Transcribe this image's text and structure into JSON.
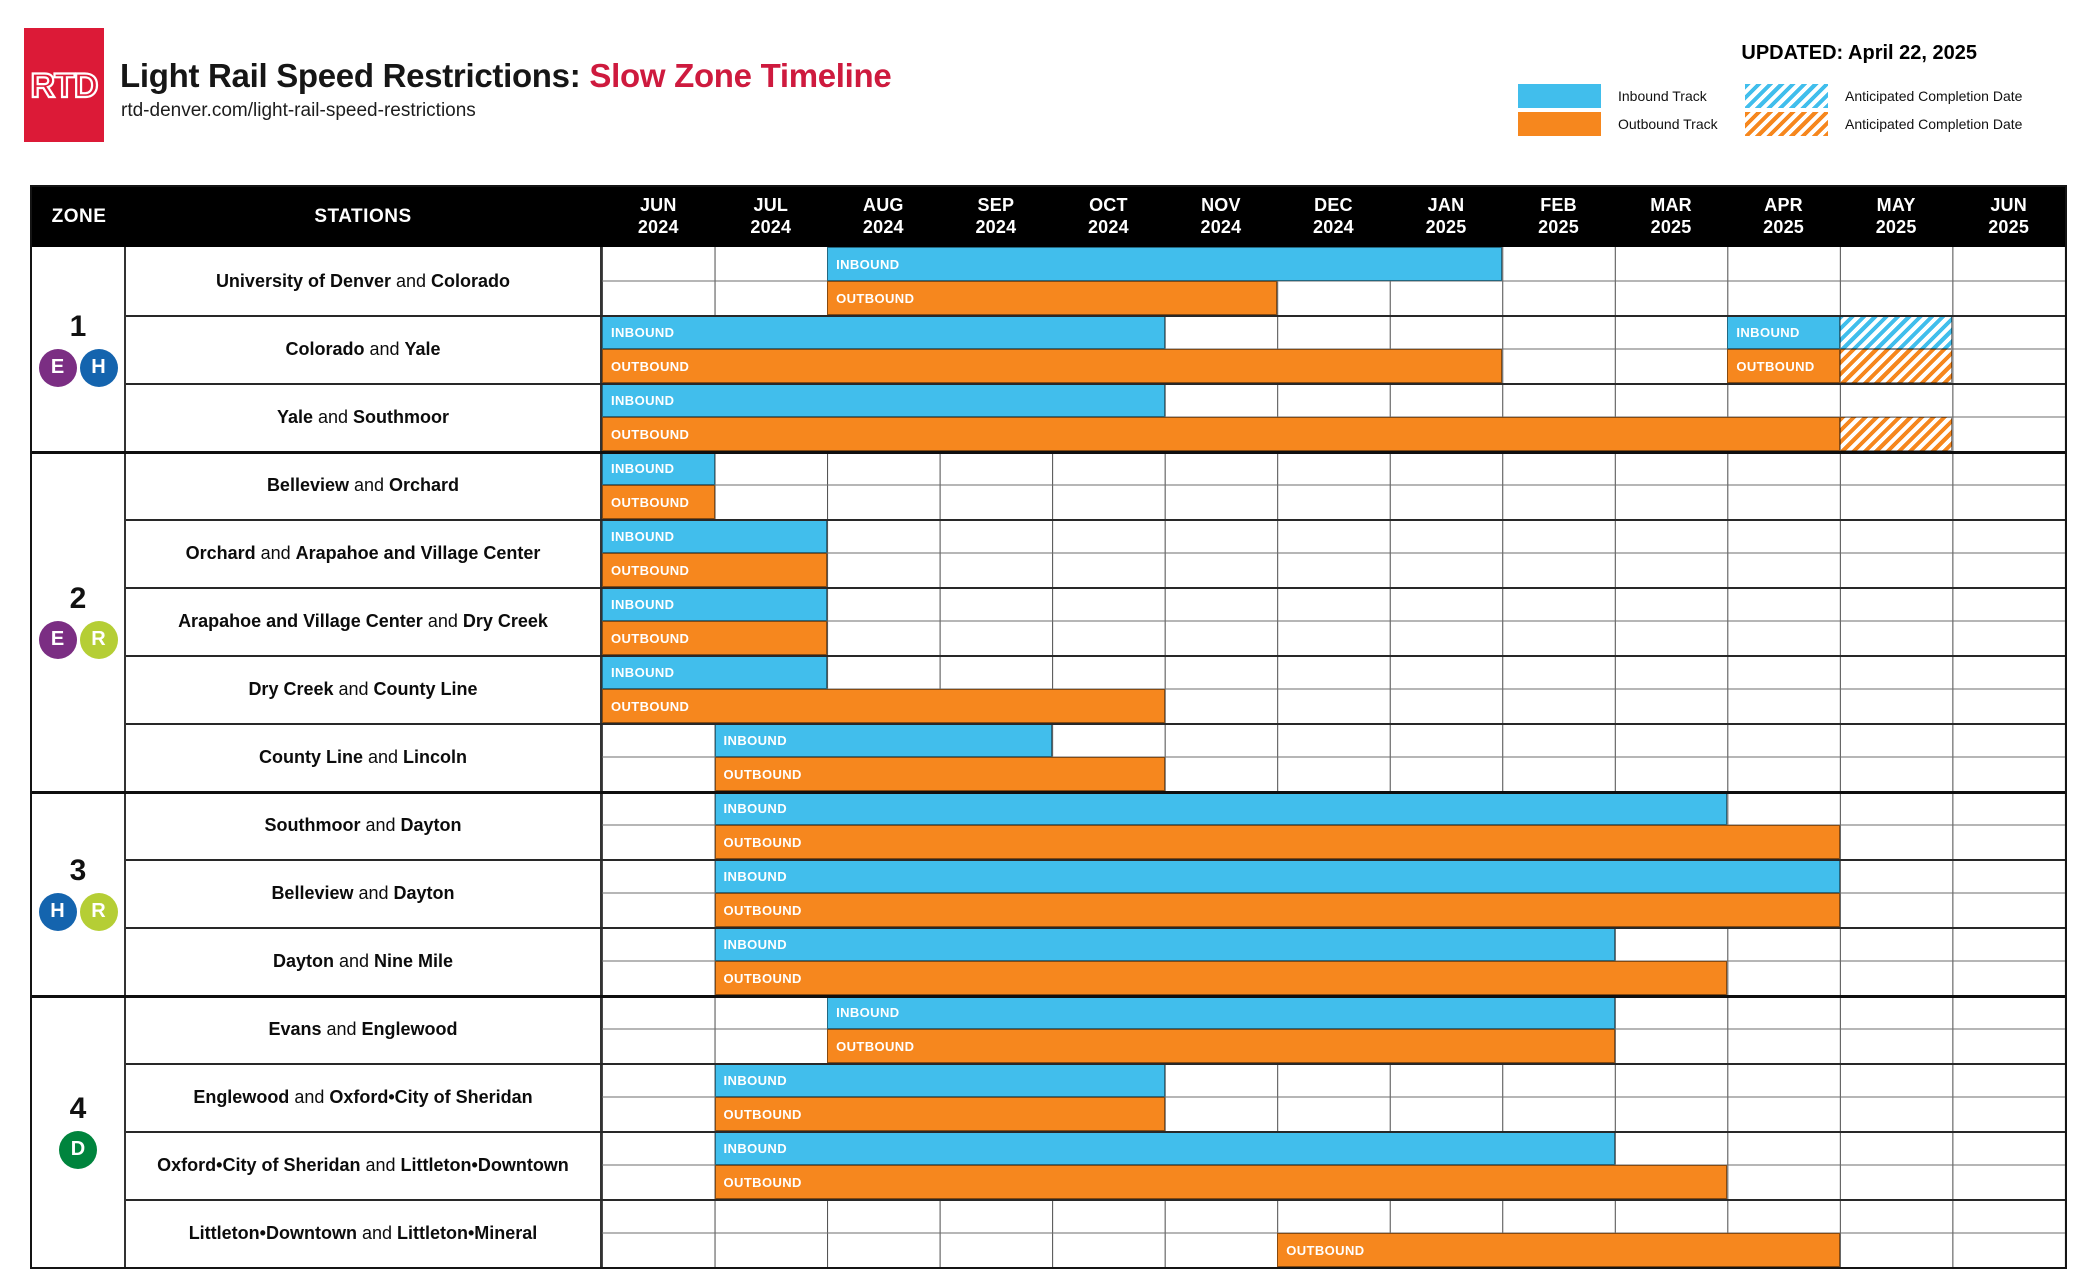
{
  "header": {
    "logo_text": "RTD",
    "title_black": "Light Rail Speed Restrictions:",
    "title_red": "Slow Zone Timeline",
    "subtitle": "rtd-denver.com/light-rail-speed-restrictions",
    "updated": "UPDATED: April 22, 2025"
  },
  "legend": {
    "inbound_label": "Inbound Track",
    "outbound_label": "Outbound Track",
    "anticipated_inbound_label": "Anticipated Completion Date",
    "anticipated_outbound_label": "Anticipated Completion Date"
  },
  "labels": {
    "inbound": "INBOUND",
    "outbound": "OUTBOUND"
  },
  "columns": {
    "zone": "ZONE",
    "stations": "STATIONS"
  },
  "months": [
    {
      "m": "JUN",
      "y": "2024"
    },
    {
      "m": "JUL",
      "y": "2024"
    },
    {
      "m": "AUG",
      "y": "2024"
    },
    {
      "m": "SEP",
      "y": "2024"
    },
    {
      "m": "OCT",
      "y": "2024"
    },
    {
      "m": "NOV",
      "y": "2024"
    },
    {
      "m": "DEC",
      "y": "2024"
    },
    {
      "m": "JAN",
      "y": "2025"
    },
    {
      "m": "FEB",
      "y": "2025"
    },
    {
      "m": "MAR",
      "y": "2025"
    },
    {
      "m": "APR",
      "y": "2025"
    },
    {
      "m": "MAY",
      "y": "2025"
    },
    {
      "m": "JUN",
      "y": "2025"
    }
  ],
  "colors": {
    "inbound": "#41BEEC",
    "outbound": "#F6871E",
    "header_bg": "#000000",
    "logo_red": "#DC1A37",
    "title_red": "#CE1A3E",
    "badge_E": "#7B2E83",
    "badge_H": "#1464AE",
    "badge_R": "#B5CE35",
    "badge_D": "#00843D"
  },
  "zones": [
    {
      "zone": "1",
      "badges": [
        {
          "letter": "E",
          "color_key": "badge_E"
        },
        {
          "letter": "H",
          "color_key": "badge_H"
        }
      ],
      "rows": [
        {
          "name": [
            [
              "University of Denver",
              true
            ],
            [
              " and ",
              false
            ],
            [
              "Colorado",
              true
            ]
          ],
          "in": [
            {
              "s": 2,
              "l": 6
            }
          ],
          "out": [
            {
              "s": 2,
              "l": 4
            }
          ],
          "inh": [],
          "outh": []
        },
        {
          "name": [
            [
              "Colorado",
              true
            ],
            [
              " and ",
              false
            ],
            [
              "Yale",
              true
            ]
          ],
          "in": [
            {
              "s": 0,
              "l": 5
            },
            {
              "s": 10,
              "l": 1
            }
          ],
          "out": [
            {
              "s": 0,
              "l": 8
            },
            {
              "s": 10,
              "l": 1
            }
          ],
          "inh": [
            {
              "s": 11,
              "l": 1
            }
          ],
          "outh": [
            {
              "s": 11,
              "l": 1
            }
          ]
        },
        {
          "name": [
            [
              "Yale",
              true
            ],
            [
              " and ",
              false
            ],
            [
              "Southmoor",
              true
            ]
          ],
          "in": [
            {
              "s": 0,
              "l": 5
            }
          ],
          "out": [
            {
              "s": 0,
              "l": 11
            }
          ],
          "inh": [],
          "outh": [
            {
              "s": 11,
              "l": 1
            }
          ]
        }
      ]
    },
    {
      "zone": "2",
      "badges": [
        {
          "letter": "E",
          "color_key": "badge_E"
        },
        {
          "letter": "R",
          "color_key": "badge_R"
        }
      ],
      "rows": [
        {
          "name": [
            [
              "Belleview",
              true
            ],
            [
              " and ",
              false
            ],
            [
              "Orchard",
              true
            ]
          ],
          "in": [
            {
              "s": 0,
              "l": 1
            }
          ],
          "out": [
            {
              "s": 0,
              "l": 1
            }
          ],
          "inh": [],
          "outh": []
        },
        {
          "name": [
            [
              "Orchard",
              true
            ],
            [
              " and ",
              false
            ],
            [
              "Arapahoe and Village Center",
              true
            ]
          ],
          "in": [
            {
              "s": 0,
              "l": 2
            }
          ],
          "out": [
            {
              "s": 0,
              "l": 2
            }
          ],
          "inh": [],
          "outh": []
        },
        {
          "name": [
            [
              "Arapahoe and Village Center",
              true
            ],
            [
              " and ",
              false
            ],
            [
              "Dry Creek",
              true
            ]
          ],
          "in": [
            {
              "s": 0,
              "l": 2
            }
          ],
          "out": [
            {
              "s": 0,
              "l": 2
            }
          ],
          "inh": [],
          "outh": []
        },
        {
          "name": [
            [
              "Dry Creek",
              true
            ],
            [
              " and ",
              false
            ],
            [
              "County Line",
              true
            ]
          ],
          "in": [
            {
              "s": 0,
              "l": 2
            }
          ],
          "out": [
            {
              "s": 0,
              "l": 5
            }
          ],
          "inh": [],
          "outh": []
        },
        {
          "name": [
            [
              "County Line",
              true
            ],
            [
              " and ",
              false
            ],
            [
              "Lincoln",
              true
            ]
          ],
          "in": [
            {
              "s": 1,
              "l": 3
            }
          ],
          "out": [
            {
              "s": 1,
              "l": 4
            }
          ],
          "inh": [],
          "outh": []
        }
      ]
    },
    {
      "zone": "3",
      "badges": [
        {
          "letter": "H",
          "color_key": "badge_H"
        },
        {
          "letter": "R",
          "color_key": "badge_R"
        }
      ],
      "rows": [
        {
          "name": [
            [
              "Southmoor",
              true
            ],
            [
              " and ",
              false
            ],
            [
              "Dayton",
              true
            ]
          ],
          "in": [
            {
              "s": 1,
              "l": 9
            }
          ],
          "out": [
            {
              "s": 1,
              "l": 10
            }
          ],
          "inh": [],
          "outh": []
        },
        {
          "name": [
            [
              "Belleview",
              true
            ],
            [
              " and ",
              false
            ],
            [
              "Dayton",
              true
            ]
          ],
          "in": [
            {
              "s": 1,
              "l": 10
            }
          ],
          "out": [
            {
              "s": 1,
              "l": 10
            }
          ],
          "inh": [],
          "outh": []
        },
        {
          "name": [
            [
              "Dayton",
              true
            ],
            [
              " and ",
              false
            ],
            [
              "Nine Mile",
              true
            ]
          ],
          "in": [
            {
              "s": 1,
              "l": 8
            }
          ],
          "out": [
            {
              "s": 1,
              "l": 9
            }
          ],
          "inh": [],
          "outh": []
        }
      ]
    },
    {
      "zone": "4",
      "badges": [
        {
          "letter": "D",
          "color_key": "badge_D"
        }
      ],
      "rows": [
        {
          "name": [
            [
              "Evans",
              true
            ],
            [
              " and ",
              false
            ],
            [
              "Englewood",
              true
            ]
          ],
          "in": [
            {
              "s": 2,
              "l": 7
            }
          ],
          "out": [
            {
              "s": 2,
              "l": 7
            }
          ],
          "inh": [],
          "outh": []
        },
        {
          "name": [
            [
              "Englewood",
              true
            ],
            [
              " and ",
              false
            ],
            [
              "Oxford•City of Sheridan",
              true
            ]
          ],
          "in": [
            {
              "s": 1,
              "l": 4
            }
          ],
          "out": [
            {
              "s": 1,
              "l": 4
            }
          ],
          "inh": [],
          "outh": []
        },
        {
          "name": [
            [
              "Oxford•City of Sheridan",
              true
            ],
            [
              " and ",
              false
            ],
            [
              "Littleton•Downtown",
              true
            ]
          ],
          "in": [
            {
              "s": 1,
              "l": 8
            }
          ],
          "out": [
            {
              "s": 1,
              "l": 9
            }
          ],
          "inh": [],
          "outh": []
        },
        {
          "name": [
            [
              "Littleton•Downtown",
              true
            ],
            [
              " and ",
              false
            ],
            [
              "Littleton•Mineral",
              true
            ]
          ],
          "in": [],
          "out": [
            {
              "s": 6,
              "l": 5
            }
          ],
          "inh": [],
          "outh": []
        }
      ]
    }
  ],
  "chart_data": {
    "type": "bar",
    "subtype": "gantt-timeline",
    "title": "Light Rail Speed Restrictions: Slow Zone Timeline",
    "updated": "UPDATED: April 22, 2025",
    "x_categories": [
      "JUN 2024",
      "JUL 2024",
      "AUG 2024",
      "SEP 2024",
      "OCT 2024",
      "NOV 2024",
      "DEC 2024",
      "JAN 2025",
      "FEB 2025",
      "MAR 2025",
      "APR 2025",
      "MAY 2025",
      "JUN 2025"
    ],
    "legend": [
      "Inbound Track",
      "Outbound Track",
      "Anticipated Completion Date (inbound)",
      "Anticipated Completion Date (outbound)"
    ],
    "rows": [
      {
        "zone": "1",
        "routes": [
          "E",
          "H"
        ],
        "station": "University of Denver and Colorado",
        "inbound": [
          [
            "AUG 2024",
            "JAN 2025"
          ]
        ],
        "outbound": [
          [
            "AUG 2024",
            "NOV 2024"
          ]
        ],
        "inbound_anticipated": [],
        "outbound_anticipated": []
      },
      {
        "zone": "1",
        "routes": [
          "E",
          "H"
        ],
        "station": "Colorado and Yale",
        "inbound": [
          [
            "JUN 2024",
            "OCT 2024"
          ],
          [
            "APR 2025",
            "APR 2025"
          ]
        ],
        "outbound": [
          [
            "JUN 2024",
            "JAN 2025"
          ],
          [
            "APR 2025",
            "APR 2025"
          ]
        ],
        "inbound_anticipated": [
          "MAY 2025"
        ],
        "outbound_anticipated": [
          "MAY 2025"
        ]
      },
      {
        "zone": "1",
        "routes": [
          "E",
          "H"
        ],
        "station": "Yale and Southmoor",
        "inbound": [
          [
            "JUN 2024",
            "OCT 2024"
          ]
        ],
        "outbound": [
          [
            "JUN 2024",
            "APR 2025"
          ]
        ],
        "inbound_anticipated": [],
        "outbound_anticipated": [
          "MAY 2025"
        ]
      },
      {
        "zone": "2",
        "routes": [
          "E",
          "R"
        ],
        "station": "Belleview and Orchard",
        "inbound": [
          [
            "JUN 2024",
            "JUN 2024"
          ]
        ],
        "outbound": [
          [
            "JUN 2024",
            "JUN 2024"
          ]
        ],
        "inbound_anticipated": [],
        "outbound_anticipated": []
      },
      {
        "zone": "2",
        "routes": [
          "E",
          "R"
        ],
        "station": "Orchard and Arapahoe and Village Center",
        "inbound": [
          [
            "JUN 2024",
            "JUL 2024"
          ]
        ],
        "outbound": [
          [
            "JUN 2024",
            "JUL 2024"
          ]
        ],
        "inbound_anticipated": [],
        "outbound_anticipated": []
      },
      {
        "zone": "2",
        "routes": [
          "E",
          "R"
        ],
        "station": "Arapahoe and Village Center and Dry Creek",
        "inbound": [
          [
            "JUN 2024",
            "JUL 2024"
          ]
        ],
        "outbound": [
          [
            "JUN 2024",
            "JUL 2024"
          ]
        ],
        "inbound_anticipated": [],
        "outbound_anticipated": []
      },
      {
        "zone": "2",
        "routes": [
          "E",
          "R"
        ],
        "station": "Dry Creek and County Line",
        "inbound": [
          [
            "JUN 2024",
            "JUL 2024"
          ]
        ],
        "outbound": [
          [
            "JUN 2024",
            "OCT 2024"
          ]
        ],
        "inbound_anticipated": [],
        "outbound_anticipated": []
      },
      {
        "zone": "2",
        "routes": [
          "E",
          "R"
        ],
        "station": "County Line and Lincoln",
        "inbound": [
          [
            "JUL 2024",
            "SEP 2024"
          ]
        ],
        "outbound": [
          [
            "JUL 2024",
            "OCT 2024"
          ]
        ],
        "inbound_anticipated": [],
        "outbound_anticipated": []
      },
      {
        "zone": "3",
        "routes": [
          "H",
          "R"
        ],
        "station": "Southmoor and Dayton",
        "inbound": [
          [
            "JUL 2024",
            "MAR 2025"
          ]
        ],
        "outbound": [
          [
            "JUL 2024",
            "APR 2025"
          ]
        ],
        "inbound_anticipated": [],
        "outbound_anticipated": []
      },
      {
        "zone": "3",
        "routes": [
          "H",
          "R"
        ],
        "station": "Belleview and Dayton",
        "inbound": [
          [
            "JUL 2024",
            "APR 2025"
          ]
        ],
        "outbound": [
          [
            "JUL 2024",
            "APR 2025"
          ]
        ],
        "inbound_anticipated": [],
        "outbound_anticipated": []
      },
      {
        "zone": "3",
        "routes": [
          "H",
          "R"
        ],
        "station": "Dayton and Nine Mile",
        "inbound": [
          [
            "JUL 2024",
            "FEB 2025"
          ]
        ],
        "outbound": [
          [
            "JUL 2024",
            "MAR 2025"
          ]
        ],
        "inbound_anticipated": [],
        "outbound_anticipated": []
      },
      {
        "zone": "4",
        "routes": [
          "D"
        ],
        "station": "Evans and Englewood",
        "inbound": [
          [
            "AUG 2024",
            "FEB 2025"
          ]
        ],
        "outbound": [
          [
            "AUG 2024",
            "FEB 2025"
          ]
        ],
        "inbound_anticipated": [],
        "outbound_anticipated": []
      },
      {
        "zone": "4",
        "routes": [
          "D"
        ],
        "station": "Englewood and Oxford•City of Sheridan",
        "inbound": [
          [
            "JUL 2024",
            "OCT 2024"
          ]
        ],
        "outbound": [
          [
            "JUL 2024",
            "OCT 2024"
          ]
        ],
        "inbound_anticipated": [],
        "outbound_anticipated": []
      },
      {
        "zone": "4",
        "routes": [
          "D"
        ],
        "station": "Oxford•City of Sheridan and Littleton•Downtown",
        "inbound": [
          [
            "JUL 2024",
            "FEB 2025"
          ]
        ],
        "outbound": [
          [
            "JUL 2024",
            "MAR 2025"
          ]
        ],
        "inbound_anticipated": [],
        "outbound_anticipated": []
      },
      {
        "zone": "4",
        "routes": [
          "D"
        ],
        "station": "Littleton•Downtown and Littleton•Mineral",
        "inbound": [],
        "outbound": [
          [
            "DEC 2024",
            "APR 2025"
          ]
        ],
        "inbound_anticipated": [],
        "outbound_anticipated": []
      }
    ]
  }
}
